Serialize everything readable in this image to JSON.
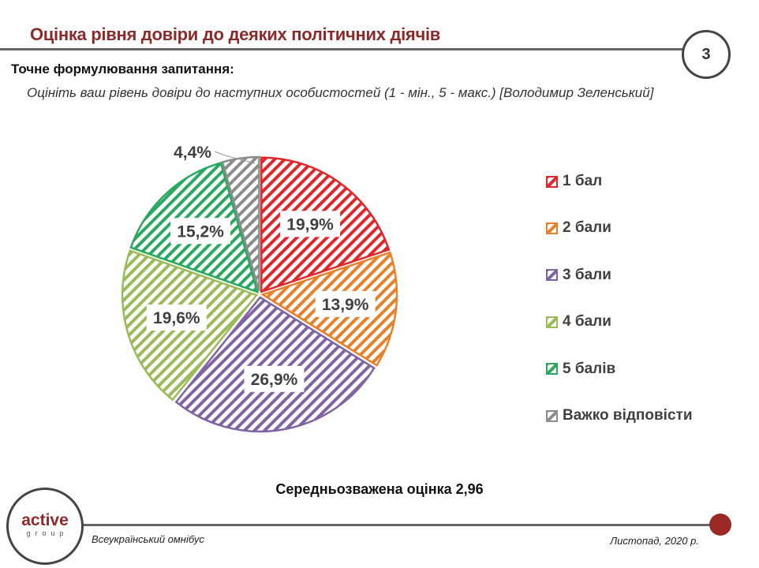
{
  "header": {
    "title": "Оцінка рівня довіри до деяких політичних діячів",
    "page_number": "3",
    "question_label": "Точне формулювання запитання:",
    "question_text": "Оцініть ваш рівень довіри до наступних особистостей (1 - мін., 5 - макс.) [Володимир Зеленський]"
  },
  "chart_data": {
    "type": "pie",
    "categories": [
      "1 бал",
      "2 бали",
      "3 бали",
      "4 бали",
      "5 балів",
      "Важко відповісти"
    ],
    "values": [
      19.9,
      13.9,
      26.9,
      19.6,
      15.2,
      4.4
    ],
    "labels": [
      "19,9%",
      "13,9%",
      "26,9%",
      "19,6%",
      "15,2%",
      "4,4%"
    ],
    "colors": [
      "#e0262b",
      "#e8802a",
      "#8064a2",
      "#9bbb59",
      "#2aa860",
      "#8c8c8c"
    ],
    "fill_pattern": "diagonal-hatch",
    "start_angle": "top",
    "direction": "clockwise",
    "legend_position": "right"
  },
  "summary": "Середньозважена оцінка 2,96",
  "footer": {
    "logo_main": "active",
    "logo_sub": "group",
    "left_text": "Всеукраїнський омнібус",
    "right_text": "Листопад, 2020 р."
  }
}
